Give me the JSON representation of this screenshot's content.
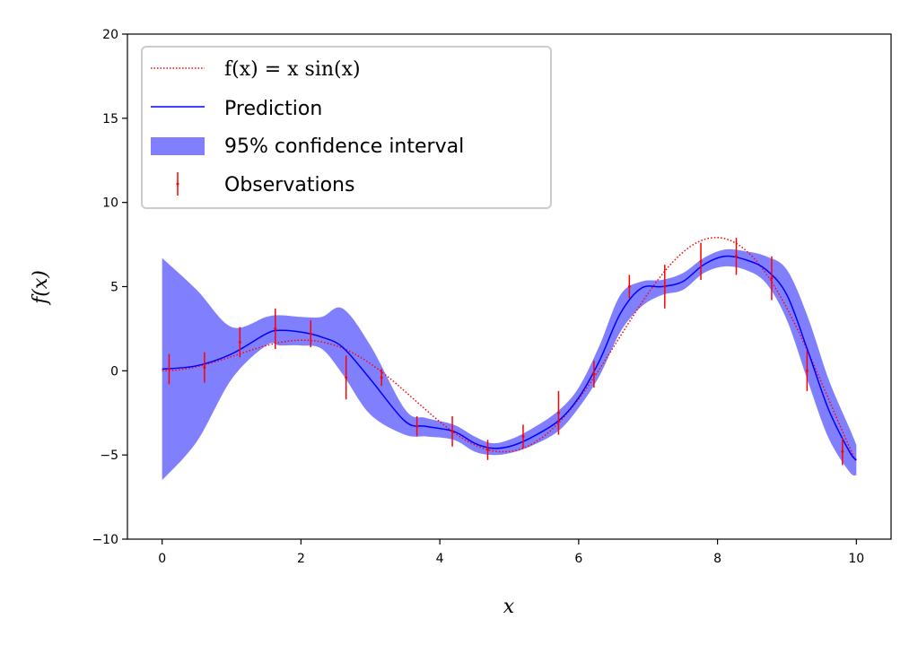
{
  "chart_data": {
    "type": "line",
    "xlabel": "x",
    "ylabel": "f(x)",
    "xlim": [
      -0.5,
      10.5
    ],
    "ylim": [
      -10,
      20
    ],
    "x_ticks": [
      "0",
      "2",
      "4",
      "6",
      "8",
      "10"
    ],
    "x_tick_values": [
      0,
      2,
      4,
      6,
      8,
      10
    ],
    "y_ticks": [
      "−10",
      "−5",
      "0",
      "5",
      "10",
      "15",
      "20"
    ],
    "y_tick_values": [
      -10,
      -5,
      0,
      5,
      10,
      15,
      20
    ],
    "grid": false,
    "legend_position": "top-left",
    "legend": {
      "function_label": "f(x) = x sin(x)",
      "prediction_label": "Prediction",
      "ci_label": "95% confidence interval",
      "observations_label": "Observations"
    },
    "true_function": {
      "expression": "x*sin(x)",
      "x_range": [
        0,
        10
      ],
      "color": "#ff0000",
      "style": "dotted"
    },
    "prediction": {
      "color": "#0000ff",
      "x": [
        0,
        0.5,
        1.0,
        1.5,
        1.7,
        2.0,
        2.3,
        2.6,
        3.0,
        3.5,
        3.8,
        4.2,
        4.5,
        4.75,
        5.0,
        5.3,
        5.7,
        6.0,
        6.3,
        6.6,
        6.9,
        7.2,
        7.5,
        7.8,
        8.1,
        8.4,
        8.7,
        9.0,
        9.3,
        9.6,
        9.9,
        10.0
      ],
      "y": [
        0.1,
        0.3,
        1.0,
        2.2,
        2.4,
        2.3,
        2.0,
        1.4,
        -0.5,
        -3.0,
        -3.3,
        -3.6,
        -4.3,
        -4.6,
        -4.5,
        -4.0,
        -3.0,
        -1.6,
        0.6,
        3.4,
        4.9,
        5.0,
        5.3,
        6.3,
        6.8,
        6.6,
        6.0,
        4.5,
        1.2,
        -2.3,
        -4.8,
        -5.3
      ]
    },
    "confidence_interval": {
      "color": "#8080ff",
      "lower": [
        -6.5,
        -4.2,
        -0.5,
        1.5,
        1.5,
        1.5,
        1.3,
        -0.2,
        -2.6,
        -3.8,
        -3.9,
        -4.1,
        -4.8,
        -5.0,
        -4.9,
        -4.5,
        -3.6,
        -2.2,
        -0.3,
        2.3,
        3.8,
        4.5,
        4.8,
        5.8,
        6.2,
        6.0,
        5.2,
        3.0,
        -0.6,
        -4.0,
        -6.0,
        -6.2
      ],
      "upper": [
        6.7,
        4.8,
        2.6,
        3.2,
        3.3,
        3.2,
        3.2,
        3.7,
        1.5,
        -2.3,
        -2.8,
        -3.2,
        -3.9,
        -4.3,
        -4.1,
        -3.5,
        -2.4,
        -1.0,
        1.5,
        4.5,
        5.3,
        5.4,
        5.8,
        6.7,
        7.2,
        7.1,
        6.8,
        6.0,
        3.2,
        -0.5,
        -3.4,
        -4.4
      ]
    },
    "observations": {
      "color": "#ff0000",
      "x": [
        0.1,
        0.61,
        1.12,
        1.63,
        2.14,
        2.65,
        3.16,
        3.67,
        4.18,
        4.69,
        5.2,
        5.71,
        6.22,
        6.73,
        7.24,
        7.76,
        8.27,
        8.78,
        9.29,
        9.8
      ],
      "y": [
        0.01,
        0.35,
        1.01,
        1.63,
        1.8,
        1.25,
        -0.06,
        -1.85,
        -3.6,
        -4.7,
        -4.6,
        -3.05,
        -0.4,
        2.88,
        5.75,
        7.66,
        7.63,
        5.35,
        1.24,
        -3.6
      ],
      "y_measured": [
        0.1,
        0.2,
        1.7,
        2.5,
        2.2,
        -0.4,
        -0.4,
        -3.3,
        -3.6,
        -4.7,
        -3.9,
        -2.5,
        -0.2,
        5.0,
        5.0,
        6.5,
        6.8,
        5.5,
        0.0,
        -4.8
      ],
      "err": [
        0.9,
        0.9,
        0.9,
        1.2,
        0.8,
        1.3,
        0.5,
        0.6,
        0.9,
        0.6,
        0.7,
        1.3,
        0.8,
        0.7,
        1.3,
        1.1,
        1.1,
        1.3,
        1.2,
        0.8
      ]
    }
  }
}
